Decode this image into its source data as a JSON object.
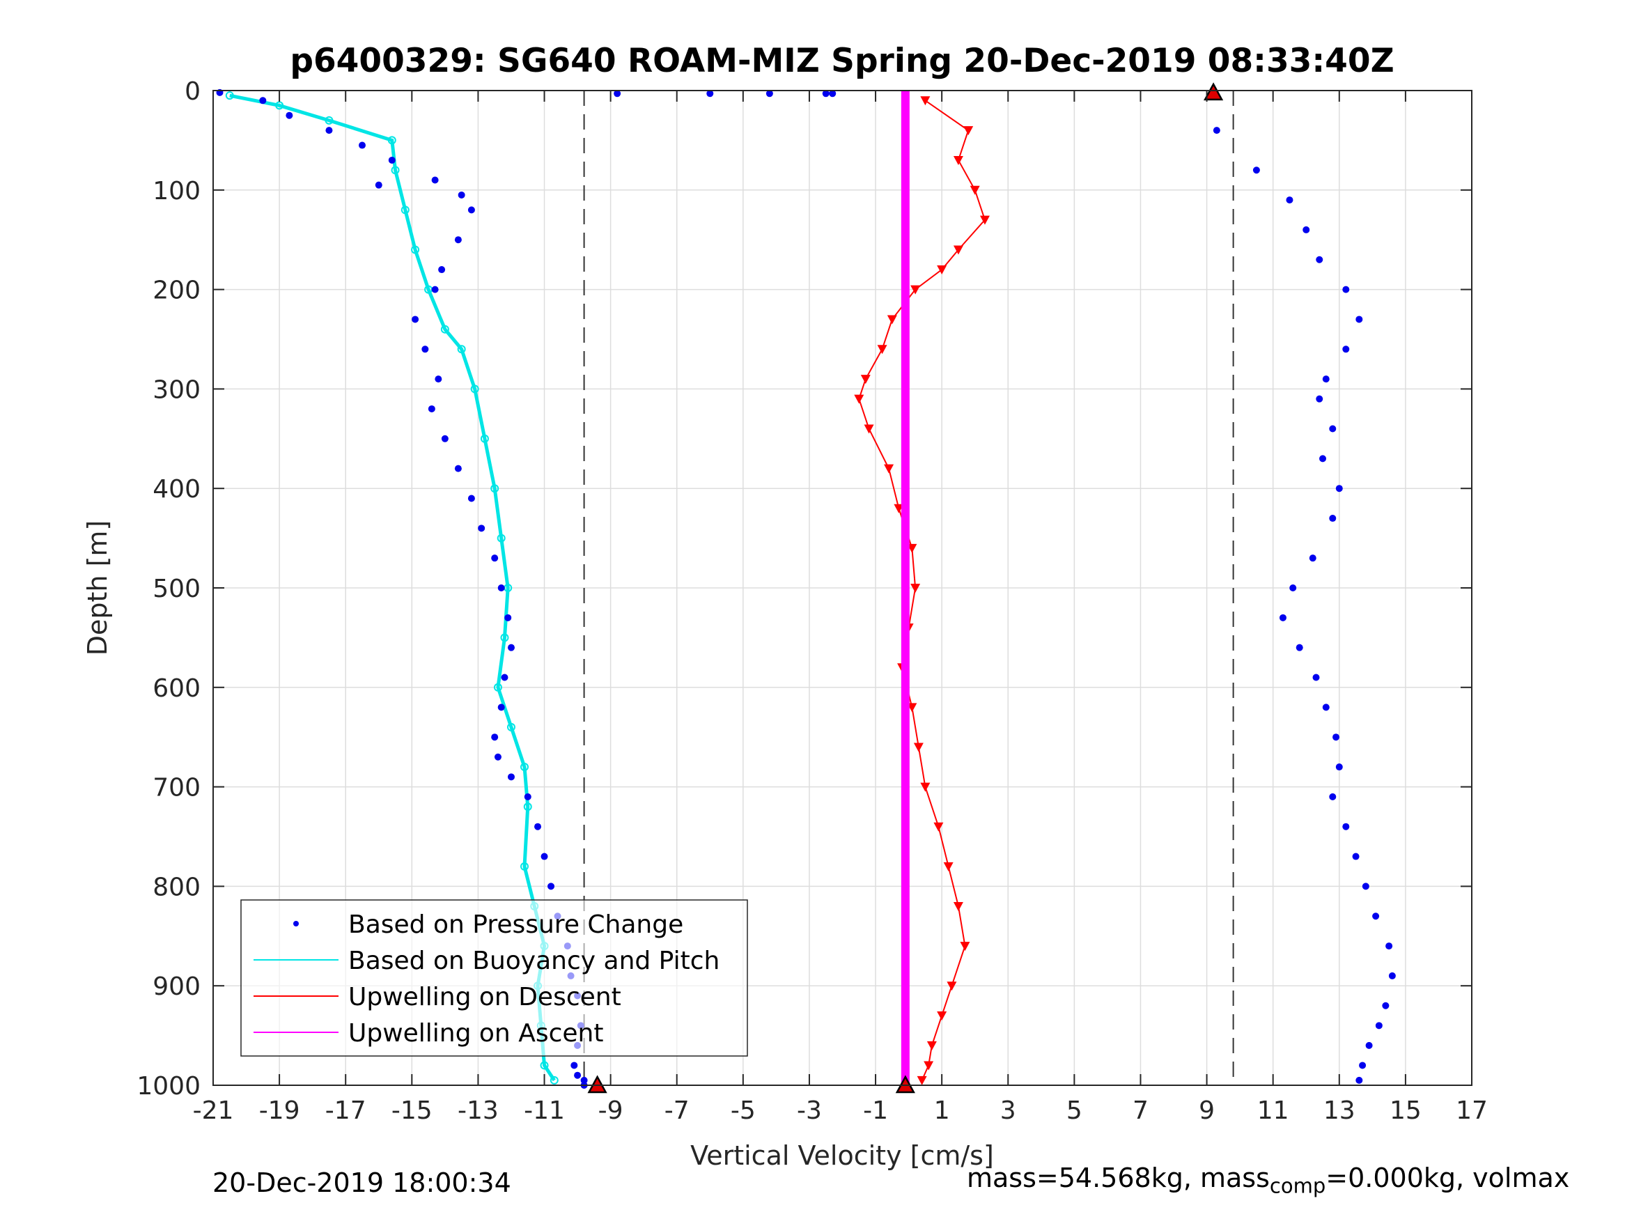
{
  "chart_data": {
    "type": "scatter",
    "title": "p6400329: SG640 ROAM-MIZ Spring 20-Dec-2019 08:33:40Z",
    "xlabel": "Vertical Velocity [cm/s]",
    "ylabel": "Depth [m]",
    "xlim": [
      -21,
      17
    ],
    "ylim": [
      0,
      1000
    ],
    "y_reversed": true,
    "grid": true,
    "xticks": [
      "-21",
      "-19",
      "-17",
      "-15",
      "-13",
      "-11",
      "-9",
      "-7",
      "-5",
      "-3",
      "-1",
      "1",
      "3",
      "5",
      "7",
      "9",
      "11",
      "13",
      "15",
      "17"
    ],
    "yticks": [
      "0",
      "100",
      "200",
      "300",
      "400",
      "500",
      "600",
      "700",
      "800",
      "900",
      "1000"
    ],
    "reference_lines_x": [
      -9.8,
      9.8
    ],
    "legend_placement": "bottom-left",
    "legend": [
      {
        "label": "Based on Pressure Change",
        "color": "#0000ee",
        "marker": "dot"
      },
      {
        "label": "Based on Buoyancy and Pitch",
        "color": "#00e5e5",
        "marker": "line"
      },
      {
        "label": "Upwelling on Descent",
        "color": "#ff0000",
        "marker": "line"
      },
      {
        "label": "Upwelling on Ascent",
        "color": "#ff00ff",
        "marker": "line"
      }
    ],
    "series": [
      {
        "name": "Based on Pressure Change",
        "color": "#0000ee",
        "x": [
          -20.8,
          -19.5,
          -18.7,
          -17.5,
          -16.5,
          -15.6,
          -16.0,
          -14.3,
          -13.5,
          -13.2,
          -13.6,
          -14.1,
          -14.3,
          -14.9,
          -14.6,
          -14.2,
          -14.4,
          -14.0,
          -13.6,
          -13.2,
          -12.9,
          -12.5,
          -12.3,
          -12.1,
          -12.0,
          -12.2,
          -12.3,
          -12.5,
          -12.4,
          -12.0,
          -11.5,
          -11.2,
          -11.0,
          -10.8,
          -10.6,
          -10.3,
          -10.2,
          -10.0,
          -9.9,
          -10.0,
          -10.1,
          -10.0,
          -9.8,
          -9.8
        ],
        "y": [
          2,
          10,
          25,
          40,
          55,
          70,
          95,
          90,
          105,
          120,
          150,
          180,
          200,
          230,
          260,
          290,
          320,
          350,
          380,
          410,
          440,
          470,
          500,
          530,
          560,
          590,
          620,
          650,
          670,
          690,
          710,
          740,
          770,
          800,
          830,
          860,
          890,
          910,
          940,
          960,
          980,
          990,
          995,
          1000
        ],
        "x_desc": [
          -8.8,
          -6.0,
          -4.2,
          -2.5,
          -2.3,
          9.3,
          10.5,
          11.5,
          12.0,
          12.4,
          13.2,
          13.6,
          13.2,
          12.6,
          12.4,
          12.8,
          12.5,
          13.0,
          12.8,
          12.2,
          11.6,
          11.3,
          11.8,
          12.3,
          12.6,
          12.9,
          13.0,
          12.8,
          13.2,
          13.5,
          13.8,
          14.1,
          14.5,
          14.6,
          14.4,
          14.2,
          13.9,
          13.7,
          13.6
        ],
        "y_desc": [
          3,
          3,
          3,
          3,
          3,
          40,
          80,
          110,
          140,
          170,
          200,
          230,
          260,
          290,
          310,
          340,
          370,
          400,
          430,
          470,
          500,
          530,
          560,
          590,
          620,
          650,
          680,
          710,
          740,
          770,
          800,
          830,
          860,
          890,
          920,
          940,
          960,
          980,
          995
        ]
      },
      {
        "name": "Based on Buoyancy and Pitch",
        "color": "#00e5e5",
        "x": [
          -20.5,
          -19.0,
          -17.5,
          -15.6,
          -15.5,
          -15.2,
          -14.9,
          -14.5,
          -14.0,
          -13.5,
          -13.1,
          -12.8,
          -12.5,
          -12.3,
          -12.1,
          -12.2,
          -12.4,
          -12.0,
          -11.6,
          -11.5,
          -11.6,
          -11.3,
          -11.0,
          -11.2,
          -11.1,
          -11.0,
          -10.7
        ],
        "y": [
          5,
          15,
          30,
          50,
          80,
          120,
          160,
          200,
          240,
          260,
          300,
          350,
          400,
          450,
          500,
          550,
          600,
          640,
          680,
          720,
          780,
          820,
          860,
          900,
          940,
          980,
          995
        ]
      },
      {
        "name": "Upwelling on Descent",
        "color": "#ff0000",
        "x": [
          0.5,
          1.8,
          1.5,
          2.0,
          2.3,
          1.5,
          1.0,
          0.2,
          -0.5,
          -0.8,
          -1.3,
          -1.5,
          -1.2,
          -0.6,
          -0.3,
          0.1,
          0.2,
          0.0,
          -0.2,
          0.1,
          0.3,
          0.5,
          0.9,
          1.2,
          1.5,
          1.7,
          1.3,
          1.0,
          0.7,
          0.6,
          0.4
        ],
        "y": [
          10,
          40,
          70,
          100,
          130,
          160,
          180,
          200,
          230,
          260,
          290,
          310,
          340,
          380,
          420,
          460,
          500,
          540,
          580,
          620,
          660,
          700,
          740,
          780,
          820,
          860,
          900,
          930,
          960,
          980,
          995
        ]
      },
      {
        "name": "Upwelling on Ascent",
        "color": "#ff00ff",
        "x": [
          -0.1,
          -0.1
        ],
        "y": [
          0,
          1000
        ]
      }
    ],
    "apogee_markers": [
      {
        "x": -9.4,
        "y": 1000,
        "color": "#dd0000"
      },
      {
        "x": -0.1,
        "y": 1000,
        "color": "#dd0000"
      },
      {
        "x": 9.2,
        "y": 2,
        "color": "#dd0000"
      }
    ]
  },
  "footer": {
    "left": "20-Dec-2019 18:00:34",
    "right_prefix": "mass=54.568kg, mass",
    "right_sub": "comp",
    "right_suffix": "=0.000kg, volmax"
  }
}
